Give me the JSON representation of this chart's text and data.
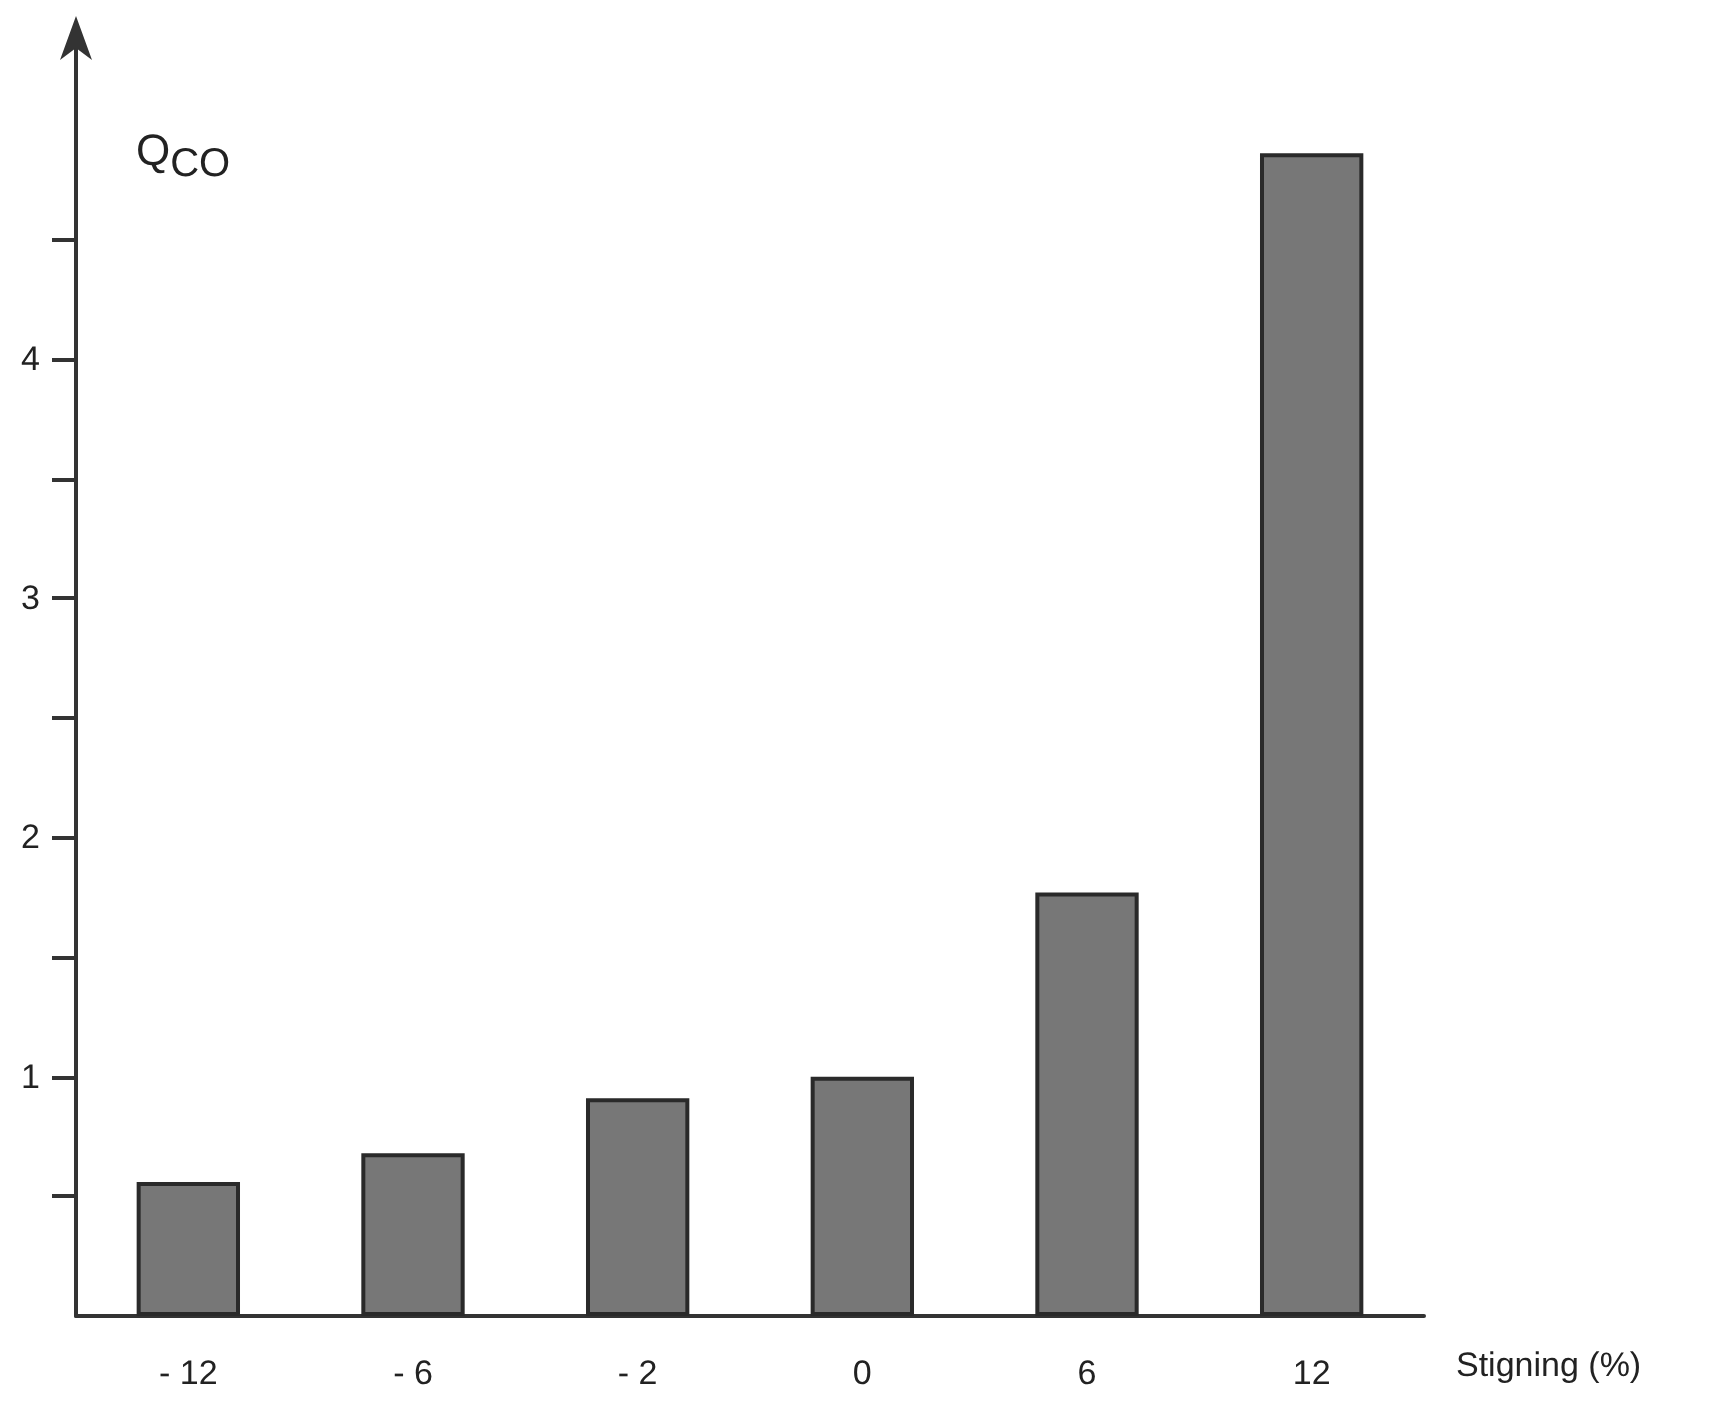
{
  "chart_data": {
    "type": "bar",
    "xlabel": "Stigning (%)",
    "ylabel": "Q$_{CO}$",
    "categories": [
      "- 12",
      "- 6",
      "- 2",
      "0",
      "6",
      "12"
    ],
    "values": [
      0.56,
      0.68,
      0.91,
      1.0,
      1.77,
      4.86
    ],
    "color": "#777777",
    "ylim": [
      0,
      5.4
    ],
    "yticks": [
      {
        "value": 0.5,
        "label": null
      },
      1,
      {
        "value": 1.5,
        "label": null
      },
      2,
      {
        "value": 2.5,
        "label": null
      },
      3,
      {
        "value": 3.5,
        "label": null
      },
      4,
      {
        "value": 4.5,
        "label": null
      }
    ],
    "grid": false
  }
}
